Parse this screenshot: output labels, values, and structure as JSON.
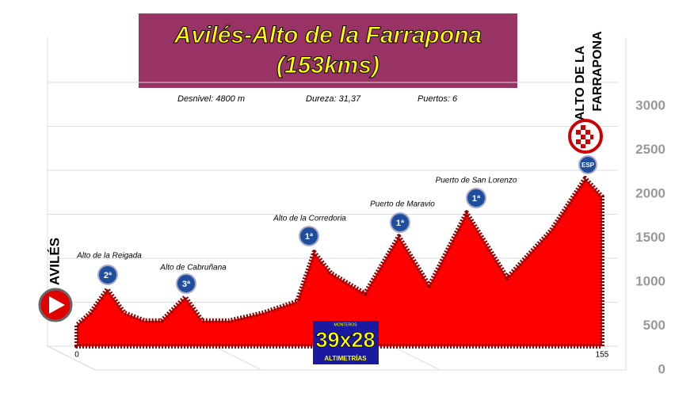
{
  "chart_data": {
    "type": "area",
    "title": "Avilés-Alto de la Farrapona",
    "subtitle": "(153kms)",
    "stats": [
      "Desnivel:  4800 m",
      "Dureza: 31,37",
      "Puertos:  6"
    ],
    "start_label": "AVILÉS",
    "finish_label": [
      "ALTO DE LA",
      "FARRAPONA"
    ],
    "finish_badge": "ESP",
    "logo": {
      "top": "MONTEROS",
      "main": "39x28",
      "bottom": "ALTIMETRÍAS"
    },
    "x": [
      0,
      4,
      9,
      14,
      20,
      25,
      32,
      37,
      45,
      55,
      65,
      70,
      75,
      85,
      95,
      104,
      115,
      127,
      140,
      150,
      155
    ],
    "values": [
      510,
      650,
      920,
      650,
      560,
      560,
      830,
      560,
      560,
      650,
      780,
      1340,
      1100,
      870,
      1520,
      960,
      1790,
      1050,
      1590,
      2180,
      1970
    ],
    "color": "#ff0000",
    "xlim": [
      0,
      155
    ],
    "xticks": [
      0,
      155
    ],
    "ylim": [
      0,
      3000
    ],
    "yticks": [
      0,
      500,
      1000,
      1500,
      2000,
      2500,
      3000
    ],
    "grid": true,
    "annotations": [
      {
        "text": "Alto de la Reigada",
        "badge": "2ª"
      },
      {
        "text": "Alto de Cabruñana",
        "badge": "3ª"
      },
      {
        "text": "Alto de la Corredoria",
        "badge": "1ª"
      },
      {
        "text": "Puerto de Maravio",
        "badge": "1ª"
      },
      {
        "text": "Puerto de San Lorenzo",
        "badge": "1ª"
      }
    ]
  }
}
